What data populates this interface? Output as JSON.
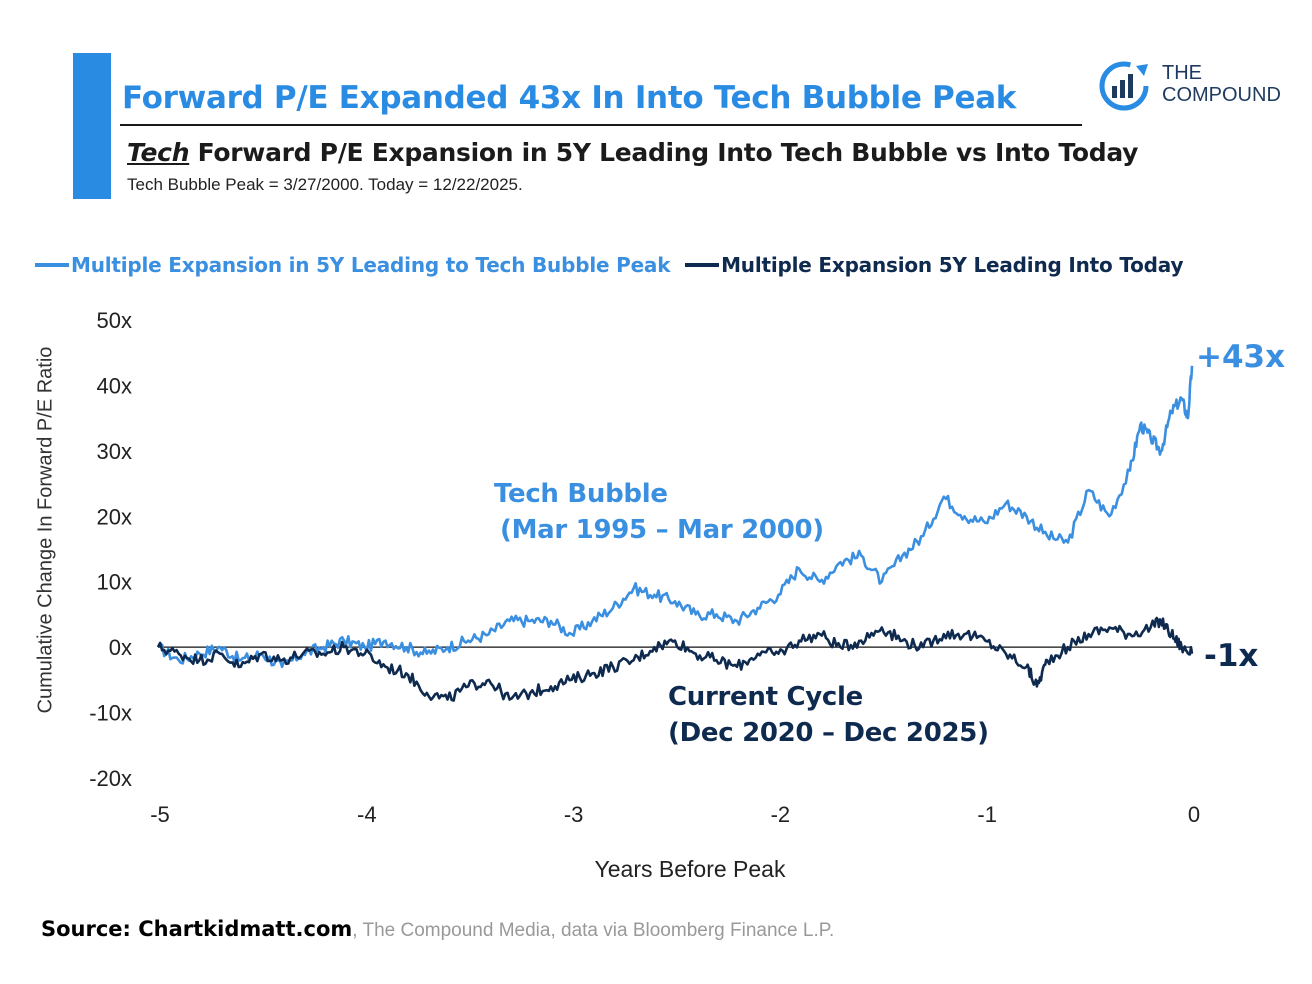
{
  "header": {
    "title": "Forward P/E Expanded 43x In Into Tech Bubble Peak",
    "subtitle_em": "Tech",
    "subtitle_rest": " Forward P/E Expansion in 5Y Leading Into Tech Bubble vs Into Today",
    "subnote": "Tech Bubble Peak = 3/27/2000. Today = 12/22/2025."
  },
  "logo": {
    "line1": "THE",
    "line2": "COMPOUND",
    "icon": "bar-chart-circle-icon"
  },
  "colors": {
    "accent": "#2a8be3",
    "tech_series": "#3b8fe0",
    "current_series": "#0f2a4f",
    "zero_line": "#111111"
  },
  "legend": [
    {
      "label": "Multiple Expansion in 5Y Leading to Tech Bubble Peak",
      "color": "#3b8fe0"
    },
    {
      "label": "Multiple Expansion 5Y Leading Into Today",
      "color": "#0f2a4f"
    }
  ],
  "annotations": {
    "tech_title": "Tech Bubble",
    "tech_dates": "(Mar 1995 – Mar 2000)",
    "current_title": "Current Cycle",
    "current_dates": "(Dec 2020 – Dec 2025)",
    "tech_end": "+43x",
    "current_end": "-1x"
  },
  "source": {
    "bold": "Source: Chartkidmatt.com",
    "rest": ", The Compound Media, data via Bloomberg Finance L.P."
  },
  "chart_data": {
    "type": "line",
    "xlabel": "Years Before Peak",
    "ylabel": "Cumulative Change In Forward P/E Ratio",
    "xlim": [
      -5,
      0
    ],
    "ylim": [
      -20,
      50
    ],
    "xticks": [
      "-5",
      "-4",
      "-3",
      "-2",
      "-1",
      "0"
    ],
    "yticks": [
      "50x",
      "40x",
      "30x",
      "20x",
      "10x",
      "0x",
      "-10x",
      "-20x"
    ],
    "legend_position": "top",
    "grid": false,
    "series": [
      {
        "name": "Multiple Expansion in 5Y Leading to Tech Bubble Peak",
        "x": [
          -5.0,
          -4.9,
          -4.8,
          -4.7,
          -4.6,
          -4.5,
          -4.4,
          -4.3,
          -4.2,
          -4.1,
          -4.0,
          -3.9,
          -3.8,
          -3.7,
          -3.6,
          -3.5,
          -3.4,
          -3.3,
          -3.2,
          -3.1,
          -3.0,
          -2.9,
          -2.8,
          -2.7,
          -2.6,
          -2.5,
          -2.4,
          -2.3,
          -2.2,
          -2.1,
          -2.0,
          -1.9,
          -1.8,
          -1.7,
          -1.6,
          -1.5,
          -1.4,
          -1.3,
          -1.2,
          -1.1,
          -1.0,
          -0.9,
          -0.8,
          -0.7,
          -0.6,
          -0.5,
          -0.4,
          -0.3,
          -0.25,
          -0.2,
          -0.15,
          -0.1,
          -0.05,
          -0.02,
          0.0
        ],
        "values": [
          0,
          -2,
          -1,
          0,
          -2,
          -1,
          -3,
          -1,
          0,
          1,
          0,
          1,
          0,
          -1,
          0,
          1,
          2,
          4,
          4,
          4,
          2,
          4,
          6,
          9,
          8,
          7,
          5,
          5,
          4,
          6,
          8,
          12,
          10,
          13,
          14,
          10,
          14,
          17,
          23,
          20,
          19,
          22,
          20,
          17,
          16,
          24,
          20,
          27,
          34,
          32,
          30,
          36,
          38,
          35,
          43
        ]
      },
      {
        "name": "Multiple Expansion 5Y Leading Into Today",
        "x": [
          -5.0,
          -4.9,
          -4.8,
          -4.7,
          -4.6,
          -4.5,
          -4.4,
          -4.3,
          -4.2,
          -4.1,
          -4.0,
          -3.9,
          -3.8,
          -3.7,
          -3.6,
          -3.5,
          -3.4,
          -3.3,
          -3.2,
          -3.1,
          -3.0,
          -2.9,
          -2.8,
          -2.7,
          -2.6,
          -2.5,
          -2.4,
          -2.3,
          -2.2,
          -2.1,
          -2.0,
          -1.9,
          -1.8,
          -1.7,
          -1.6,
          -1.5,
          -1.4,
          -1.3,
          -1.2,
          -1.1,
          -1.0,
          -0.9,
          -0.8,
          -0.75,
          -0.7,
          -0.6,
          -0.5,
          -0.4,
          -0.3,
          -0.2,
          -0.15,
          -0.1,
          -0.05,
          0.0
        ],
        "values": [
          0,
          -1,
          -2,
          -1,
          -3,
          -1,
          -2,
          -1,
          -1,
          0,
          -1,
          -3,
          -4,
          -7,
          -8,
          -6,
          -5,
          -8,
          -7,
          -6,
          -5,
          -4,
          -3,
          -2,
          0,
          1,
          -1,
          -2,
          -3,
          -1,
          -1,
          1,
          2,
          0,
          1,
          3,
          1,
          0,
          2,
          2,
          1,
          -1,
          -3,
          -6,
          -2,
          0,
          2,
          3,
          2,
          3,
          4,
          2,
          0,
          -1
        ]
      }
    ]
  }
}
